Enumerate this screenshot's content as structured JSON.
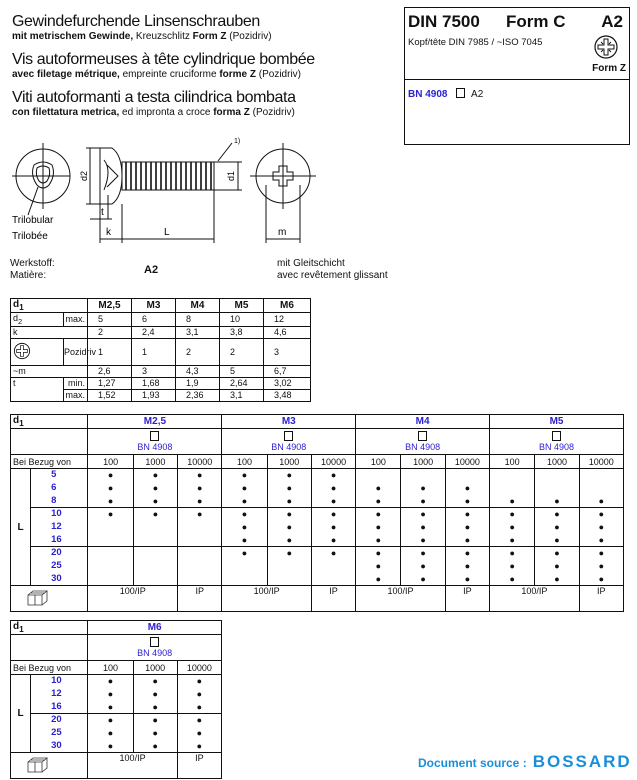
{
  "titles": {
    "de": {
      "main": "Gewindefurchende Linsenschrauben",
      "p1": "mit metrischem Gewinde,",
      "p2": " Kreuzschlitz ",
      "p3": "Form Z",
      "p4": " (Pozidriv)"
    },
    "fr": {
      "main": "Vis autoformeuses à tête cylindrique bombée",
      "p1": "avec filetage métrique,",
      "p2": " empreinte cruciforme ",
      "p3": "forme Z",
      "p4": " (Pozidriv)"
    },
    "it": {
      "main": "Viti autoformanti a testa cilindrica bombata",
      "p1": "con filettatura metrica,",
      "p2": " ed impronta a croce ",
      "p3": "forma Z",
      "p4": " (Pozidriv)"
    }
  },
  "infobox": {
    "standard": "DIN 7500",
    "form": "Form C",
    "material": "A2",
    "head_ref": "Kopf/tête DIN 7985 / ~ISO 7045",
    "drive_label": "Form Z",
    "article": "BN 4908",
    "article_material": "A2"
  },
  "drawing": {
    "footnote": "1)",
    "trilobular_de": "Trilobular",
    "trilobular_fr": "Trilobée",
    "labels": {
      "d2": "d2",
      "d1": "d1",
      "t": "t",
      "k": "k",
      "L": "L",
      "m": "m"
    }
  },
  "material": {
    "label_de": "Werkstoff:",
    "label_fr": "Matière:",
    "value": "A2",
    "coating_de": "mit Gleitschicht",
    "coating_fr": "avec revêtement glissant"
  },
  "dimensions_table": {
    "header": "d1",
    "sizes": [
      "M2,5",
      "M3",
      "M4",
      "M5",
      "M6"
    ],
    "rows": [
      {
        "label": "d2",
        "sub": "max.",
        "values": [
          "5",
          "6",
          "8",
          "10",
          "12"
        ]
      },
      {
        "label": "k",
        "sub": "",
        "values": [
          "2",
          "2,4",
          "3,1",
          "3,8",
          "4,6"
        ]
      },
      {
        "label": "pozidriv-icon",
        "sub": "Pozidriv",
        "values": [
          "1",
          "1",
          "2",
          "2",
          "3"
        ]
      },
      {
        "label": "~m",
        "sub": "",
        "values": [
          "2,6",
          "3",
          "4,3",
          "5",
          "6,7"
        ]
      },
      {
        "label": "t",
        "sub": "min.",
        "values": [
          "1,27",
          "1,68",
          "1,9",
          "2,64",
          "3,02"
        ]
      },
      {
        "label": "t",
        "sub": "max.",
        "values": [
          "1,52",
          "1,93",
          "2,36",
          "3,1",
          "3,48"
        ]
      }
    ]
  },
  "availability": {
    "d1_label": "d1",
    "qty_label": "Bei Bezug von",
    "L_label": "L",
    "quantities": [
      "100",
      "1000",
      "10000"
    ],
    "dot": "●",
    "tables": [
      {
        "lengths": [
          "5",
          "6",
          "8",
          "10",
          "12",
          "16",
          "20",
          "25",
          "30"
        ],
        "groups": [
          {
            "size": "M2,5",
            "article": "BN 4908",
            "available": [
              true,
              true,
              true,
              true,
              false,
              false,
              false,
              false,
              false
            ],
            "pack": [
              "100/IP",
              "IP"
            ]
          },
          {
            "size": "M3",
            "article": "BN 4908",
            "available": [
              true,
              true,
              true,
              true,
              true,
              true,
              true,
              false,
              false
            ],
            "pack": [
              "100/IP",
              "IP"
            ]
          },
          {
            "size": "M4",
            "article": "BN 4908",
            "available": [
              false,
              true,
              true,
              true,
              true,
              true,
              true,
              true,
              true
            ],
            "pack": [
              "100/IP",
              "IP"
            ]
          },
          {
            "size": "M5",
            "article": "BN 4908",
            "available": [
              false,
              false,
              true,
              true,
              true,
              true,
              true,
              true,
              true
            ],
            "pack": [
              "100/IP",
              "IP"
            ]
          }
        ]
      },
      {
        "lengths": [
          "10",
          "12",
          "16",
          "20",
          "25",
          "30"
        ],
        "groups": [
          {
            "size": "M6",
            "article": "BN 4908",
            "available": [
              true,
              true,
              true,
              true,
              true,
              true
            ],
            "pack": [
              "100/IP",
              "IP"
            ]
          }
        ]
      }
    ]
  },
  "footer": {
    "source_label": "Document source :",
    "brand": "BOSSARD",
    "brand_color": "#1a8fd8"
  },
  "colors": {
    "article_blue": "#2a1fd0",
    "text": "#111111"
  }
}
